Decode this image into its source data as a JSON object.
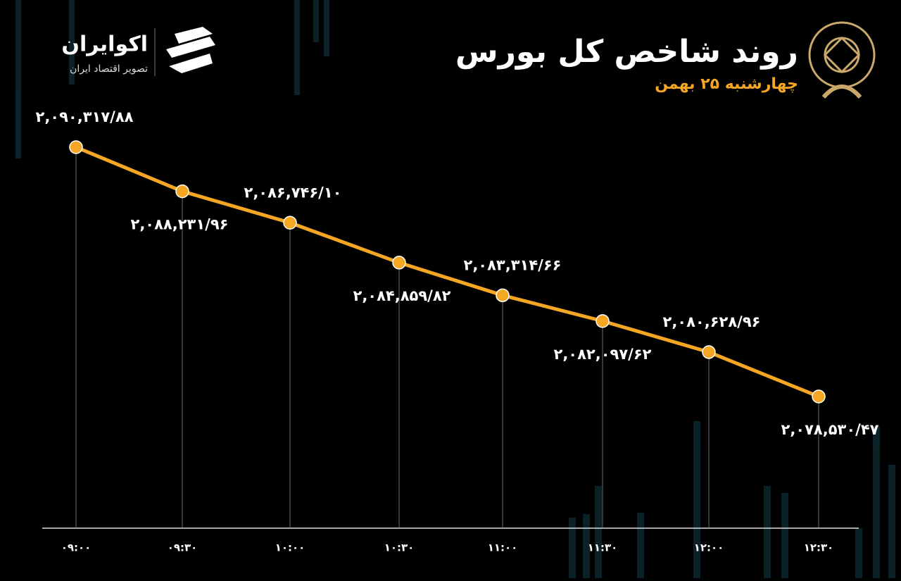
{
  "brand": {
    "name": "اکوایران",
    "tagline": "تصویر اقتصاد ایران"
  },
  "chart_data": {
    "type": "line",
    "title": "روند شاخص کل بورس",
    "subtitle": "چهارشنبه ۲۵ بهمن",
    "categories": [
      "۰۹:۰۰",
      "۰۹:۳۰",
      "۱۰:۰۰",
      "۱۰:۳۰",
      "۱۱:۰۰",
      "۱۱:۳۰",
      "۱۲:۰۰",
      "۱۲:۳۰"
    ],
    "values": [
      2090317.88,
      2088231.96,
      2086746.1,
      2084859.82,
      2083314.66,
      2082097.62,
      2080628.96,
      2078530.47
    ],
    "value_labels": [
      "۲,۰۹۰,۳۱۷/۸۸",
      "۲,۰۸۸,۲۳۱/۹۶",
      "۲,۰۸۶,۷۴۶/۱۰",
      "۲,۰۸۴,۸۵۹/۸۲",
      "۲,۰۸۳,۳۱۴/۶۶",
      "۲,۰۸۲,۰۹۷/۶۲",
      "۲,۰۸۰,۶۲۸/۹۶",
      "۲,۰۷۸,۵۳۰/۴۷"
    ],
    "color": "#f5a623"
  }
}
